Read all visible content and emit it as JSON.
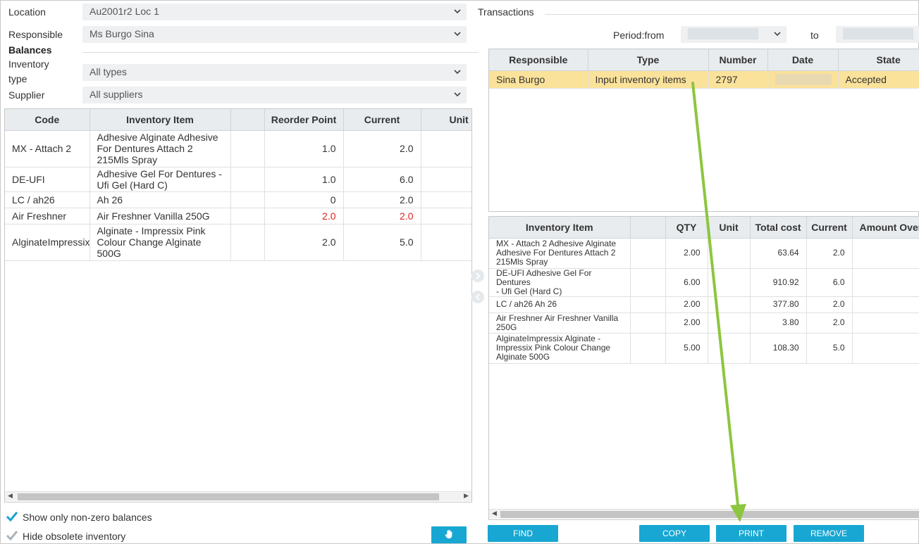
{
  "filters": {
    "location_label": "Location",
    "location_value": "Au2001r2 Loc 1",
    "responsible_label": "Responsible",
    "responsible_value": "Ms Burgo Sina",
    "balances_label": "Balances",
    "inventory_type_label_1": "Inventory",
    "inventory_type_label_2": "type",
    "inventory_type_value": "All types",
    "supplier_label": "Supplier",
    "supplier_value": "All suppliers"
  },
  "balances_table": {
    "headers": [
      "Code",
      "Inventory Item",
      "",
      "Reorder Point",
      "Current",
      "Unit"
    ],
    "rows": [
      {
        "code": "MX - Attach 2",
        "item": [
          "Adhesive Alginate Adhesive",
          "For Dentures Attach 2",
          "215Mls Spray"
        ],
        "reorder": "1.0",
        "current": "2.0",
        "low": false
      },
      {
        "code": "DE-UFI",
        "item": [
          "Adhesive Gel For Dentures -",
          "Ufi Gel (Hard C)"
        ],
        "reorder": "1.0",
        "current": "6.0",
        "low": false
      },
      {
        "code": "LC / ah26",
        "item": [
          "Ah 26"
        ],
        "reorder": "0",
        "current": "2.0",
        "low": false
      },
      {
        "code": "Air Freshner",
        "item": [
          "Air Freshner Vanilla 250G"
        ],
        "reorder": "2.0",
        "current": "2.0",
        "low": true
      },
      {
        "code": "AlginateImpressix",
        "item": [
          "Alginate - Impressix Pink",
          "Colour Change Alginate",
          "500G"
        ],
        "reorder": "2.0",
        "current": "5.0",
        "low": false
      }
    ]
  },
  "options": {
    "nonzero_label": "Show only non-zero balances",
    "obsolete_label": "Hide obsolete inventory"
  },
  "transactions": {
    "title": "Transactions",
    "period_from_label": "Period:from",
    "period_to_label": "to",
    "headers": [
      "Responsible",
      "Type",
      "Number",
      "Date",
      "State"
    ],
    "rows": [
      {
        "responsible": "Sina Burgo",
        "type": "Input inventory items",
        "number": "2797",
        "date": "",
        "state": "Accepted"
      }
    ]
  },
  "details_table": {
    "headers": [
      "Inventory Item",
      "",
      "QTY",
      "Unit",
      "Total cost",
      "Current",
      "Amount Over"
    ],
    "rows": [
      {
        "item": [
          "MX - Attach 2 Adhesive Alginate",
          "Adhesive For Dentures Attach 2",
          "215Mls Spray"
        ],
        "qty": "2.00",
        "unit": "",
        "total": "63.64",
        "current": "2.0"
      },
      {
        "item": [
          "DE-UFI Adhesive Gel For Dentures",
          "- Ufi Gel (Hard C)"
        ],
        "qty": "6.00",
        "unit": "",
        "total": "910.92",
        "current": "6.0"
      },
      {
        "item": [
          "LC / ah26 Ah 26"
        ],
        "qty": "2.00",
        "unit": "",
        "total": "377.80",
        "current": "2.0"
      },
      {
        "item": [
          "Air Freshner Air Freshner Vanilla",
          "250G"
        ],
        "qty": "2.00",
        "unit": "",
        "total": "3.80",
        "current": "2.0"
      },
      {
        "item": [
          "AlginateImpressix Alginate -",
          "Impressix Pink Colour Change",
          "Alginate 500G"
        ],
        "qty": "5.00",
        "unit": "",
        "total": "108.30",
        "current": "5.0"
      }
    ]
  },
  "buttons": {
    "find": "FIND",
    "copy": "COPY",
    "print": "PRINT",
    "remove": "REMOVE"
  },
  "colors": {
    "accent": "#17a7d2",
    "highlight_row": "#fbe29a",
    "alert_text": "#e02020",
    "annotation_arrow": "#8cc63f"
  },
  "icons": {
    "dropdown": "chevron-down-icon",
    "checkbox": "check-icon",
    "hand_button": "hand-pointer-icon",
    "pane_right": "chevron-right-icon",
    "pane_left": "chevron-left-icon"
  }
}
